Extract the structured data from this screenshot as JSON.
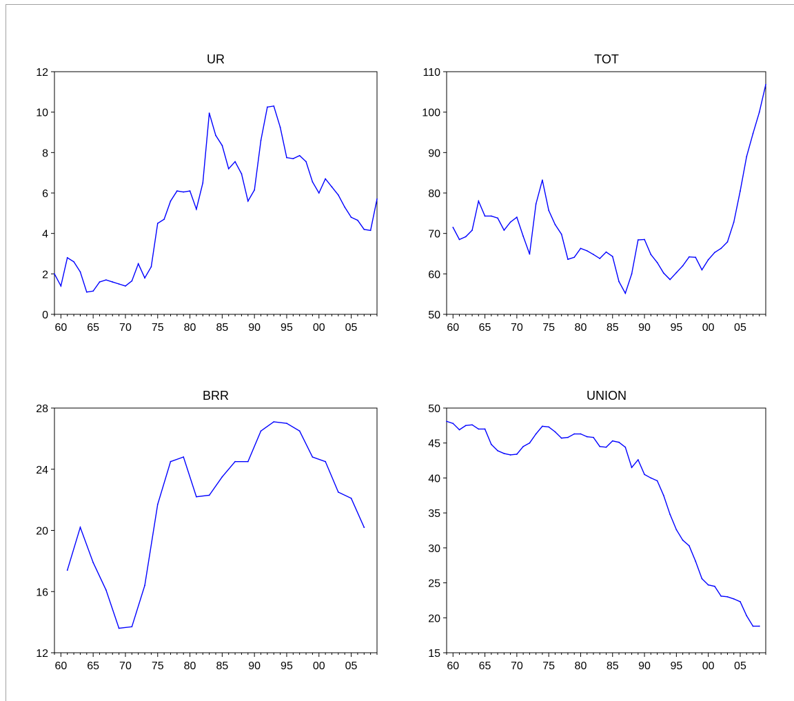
{
  "chart_data": [
    {
      "type": "line",
      "title": "UR",
      "xlabel": "",
      "ylabel": "",
      "xlim": [
        1959,
        2009
      ],
      "ylim": [
        0,
        12
      ],
      "yticks": [
        0,
        2,
        4,
        6,
        8,
        10,
        12
      ],
      "xticks": [
        1960,
        1965,
        1970,
        1975,
        1980,
        1985,
        1990,
        1995,
        2000,
        2005
      ],
      "xtick_labels": [
        "60",
        "65",
        "70",
        "75",
        "80",
        "85",
        "90",
        "95",
        "00",
        "05"
      ],
      "ytick_labels": [
        "0",
        "2",
        "4",
        "6",
        "8",
        "10",
        "12"
      ],
      "color": "#0000ff",
      "series": [
        {
          "x": [
            1959,
            1960,
            1961,
            1962,
            1963,
            1964,
            1965,
            1966,
            1967,
            1968,
            1969,
            1970,
            1971,
            1972,
            1973,
            1974,
            1975,
            1976,
            1977,
            1978,
            1979,
            1980,
            1981,
            1982,
            1983,
            1984,
            1985,
            1986,
            1987,
            1988,
            1989,
            1990,
            1991,
            1992,
            1993,
            1994,
            1995,
            1996,
            1997,
            1998,
            1999,
            2000,
            2001,
            2002,
            2003,
            2004,
            2005,
            2006,
            2007,
            2008,
            2009
          ],
          "values": [
            2.0,
            1.4,
            2.8,
            2.6,
            2.1,
            1.1,
            1.15,
            1.6,
            1.7,
            1.6,
            1.5,
            1.4,
            1.65,
            2.5,
            1.8,
            2.35,
            4.5,
            4.7,
            5.6,
            6.1,
            6.05,
            6.1,
            5.2,
            6.5,
            9.95,
            8.85,
            8.35,
            7.2,
            7.55,
            6.95,
            5.6,
            6.15,
            8.6,
            10.25,
            10.3,
            9.25,
            7.75,
            7.7,
            7.85,
            7.55,
            6.55,
            6.0,
            6.7,
            6.3,
            5.9,
            5.3,
            4.8,
            4.65,
            4.2,
            4.15,
            5.7
          ]
        }
      ]
    },
    {
      "type": "line",
      "title": "TOT",
      "xlabel": "",
      "ylabel": "",
      "xlim": [
        1959,
        2009
      ],
      "ylim": [
        50,
        110
      ],
      "yticks": [
        50,
        60,
        70,
        80,
        90,
        100,
        110
      ],
      "xticks": [
        1960,
        1965,
        1970,
        1975,
        1980,
        1985,
        1990,
        1995,
        2000,
        2005
      ],
      "xtick_labels": [
        "60",
        "65",
        "70",
        "75",
        "80",
        "85",
        "90",
        "95",
        "00",
        "05"
      ],
      "ytick_labels": [
        "50",
        "60",
        "70",
        "80",
        "90",
        "100",
        "110"
      ],
      "color": "#0000ff",
      "series": [
        {
          "x": [
            1960,
            1961,
            1962,
            1963,
            1964,
            1965,
            1966,
            1967,
            1968,
            1969,
            1970,
            1971,
            1972,
            1973,
            1974,
            1975,
            1976,
            1977,
            1978,
            1979,
            1980,
            1981,
            1982,
            1983,
            1984,
            1985,
            1986,
            1987,
            1988,
            1989,
            1990,
            1991,
            1992,
            1993,
            1994,
            1995,
            1996,
            1997,
            1998,
            1999,
            2000,
            2001,
            2002,
            2003,
            2004,
            2005,
            2006,
            2007,
            2008,
            2009
          ],
          "values": [
            71.5,
            68.5,
            69.2,
            70.8,
            78.0,
            74.3,
            74.3,
            73.8,
            70.8,
            72.8,
            74.0,
            69.3,
            64.9,
            77.3,
            83.2,
            75.7,
            72.2,
            69.8,
            63.6,
            64.1,
            66.3,
            65.7,
            64.8,
            63.8,
            65.4,
            64.3,
            58.1,
            55.2,
            60.0,
            68.4,
            68.5,
            64.8,
            62.8,
            60.2,
            58.6,
            60.3,
            62.0,
            64.2,
            64.1,
            61.0,
            63.5,
            65.3,
            66.3,
            67.9,
            72.8,
            80.5,
            89.0,
            94.7,
            100.0,
            106.8
          ]
        }
      ]
    },
    {
      "type": "line",
      "title": "BRR",
      "xlabel": "",
      "ylabel": "",
      "xlim": [
        1959,
        2009
      ],
      "ylim": [
        12,
        28
      ],
      "yticks": [
        12,
        16,
        20,
        24,
        28
      ],
      "xticks": [
        1960,
        1965,
        1970,
        1975,
        1980,
        1985,
        1990,
        1995,
        2000,
        2005
      ],
      "xtick_labels": [
        "60",
        "65",
        "70",
        "75",
        "80",
        "85",
        "90",
        "95",
        "00",
        "05"
      ],
      "ytick_labels": [
        "12",
        "16",
        "20",
        "24",
        "28"
      ],
      "color": "#0000ff",
      "series": [
        {
          "x": [
            1961,
            1963,
            1965,
            1967,
            1969,
            1971,
            1973,
            1975,
            1977,
            1979,
            1981,
            1983,
            1985,
            1987,
            1989,
            1991,
            1993,
            1995,
            1997,
            1999,
            2001,
            2003,
            2005,
            2007
          ],
          "values": [
            17.4,
            20.2,
            17.9,
            16.1,
            13.6,
            13.7,
            16.4,
            21.7,
            24.5,
            24.8,
            22.2,
            22.3,
            23.5,
            24.5,
            24.5,
            26.5,
            27.1,
            27.0,
            26.5,
            24.8,
            24.5,
            22.5,
            22.1,
            20.2
          ]
        }
      ]
    },
    {
      "type": "line",
      "title": "UNION",
      "xlabel": "",
      "ylabel": "",
      "xlim": [
        1959,
        2009
      ],
      "ylim": [
        15,
        50
      ],
      "yticks": [
        15,
        20,
        25,
        30,
        35,
        40,
        45,
        50
      ],
      "xticks": [
        1960,
        1965,
        1970,
        1975,
        1980,
        1985,
        1990,
        1995,
        2000,
        2005
      ],
      "xtick_labels": [
        "60",
        "65",
        "70",
        "75",
        "80",
        "85",
        "90",
        "95",
        "00",
        "05"
      ],
      "ytick_labels": [
        "15",
        "20",
        "25",
        "30",
        "35",
        "40",
        "45",
        "50"
      ],
      "color": "#0000ff",
      "series": [
        {
          "x": [
            1959,
            1960,
            1961,
            1962,
            1963,
            1964,
            1965,
            1966,
            1967,
            1968,
            1969,
            1970,
            1971,
            1972,
            1973,
            1974,
            1975,
            1976,
            1977,
            1978,
            1979,
            1980,
            1981,
            1982,
            1983,
            1984,
            1985,
            1986,
            1987,
            1988,
            1989,
            1990,
            1991,
            1992,
            1993,
            1994,
            1995,
            1996,
            1997,
            1998,
            1999,
            2000,
            2001,
            2002,
            2003,
            2004,
            2005,
            2006,
            2007,
            2008
          ],
          "values": [
            48.1,
            47.8,
            46.9,
            47.5,
            47.6,
            47.0,
            47.0,
            44.8,
            43.9,
            43.5,
            43.3,
            43.4,
            44.5,
            45.0,
            46.3,
            47.4,
            47.3,
            46.6,
            45.7,
            45.8,
            46.3,
            46.3,
            45.9,
            45.8,
            44.5,
            44.4,
            45.3,
            45.1,
            44.4,
            41.5,
            42.6,
            40.5,
            40.0,
            39.6,
            37.5,
            34.8,
            32.6,
            31.1,
            30.3,
            28.1,
            25.6,
            24.7,
            24.5,
            23.1,
            23.0,
            22.7,
            22.3,
            20.3,
            18.8,
            18.8
          ]
        }
      ]
    }
  ]
}
